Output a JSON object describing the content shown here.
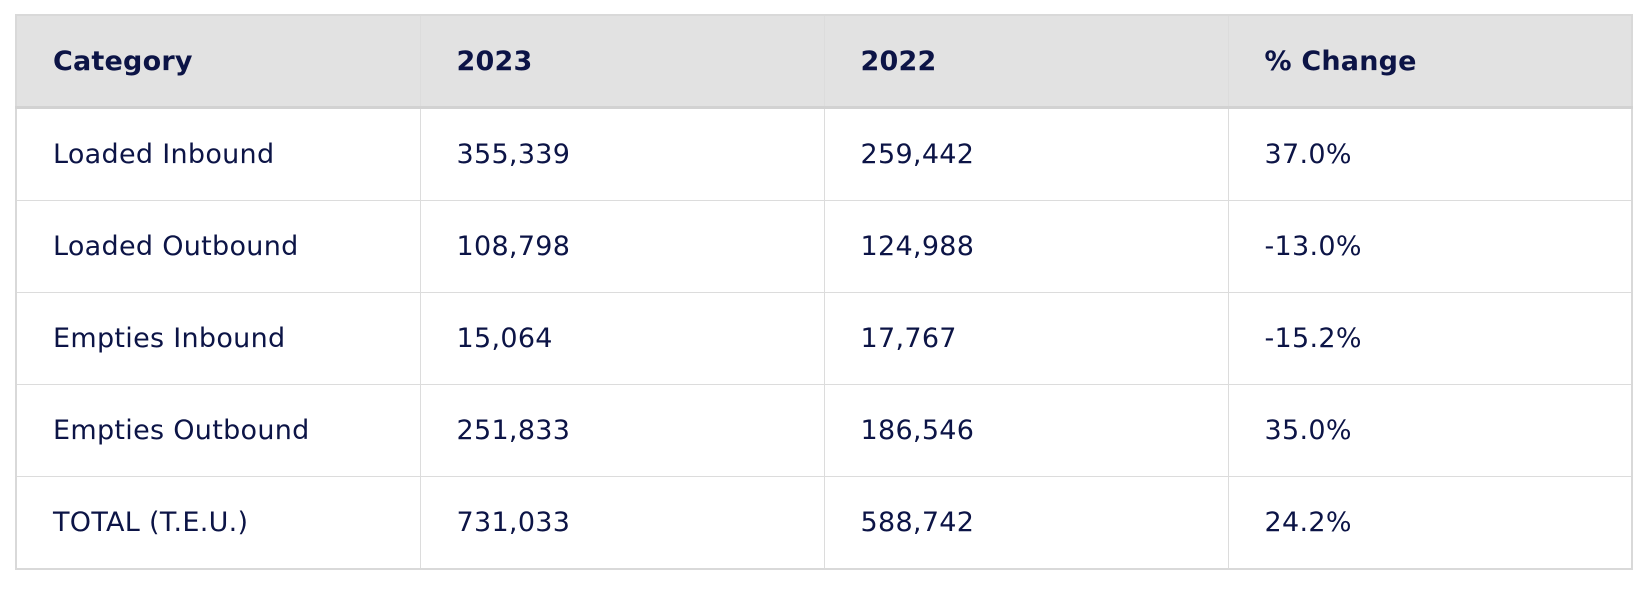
{
  "table": {
    "headers": [
      "Category",
      "2023",
      "2022",
      "% Change"
    ],
    "rows": [
      [
        "Loaded Inbound",
        "355,339",
        "259,442",
        "37.0%"
      ],
      [
        "Loaded Outbound",
        "108,798",
        "124,988",
        "-13.0%"
      ],
      [
        "Empties Inbound",
        "15,064",
        "17,767",
        "-15.2%"
      ],
      [
        "Empties Outbound",
        "251,833",
        "186,546",
        "35.0%"
      ],
      [
        "TOTAL (T.E.U.)",
        "731,033",
        "588,742",
        "24.2%"
      ]
    ]
  },
  "colors": {
    "text": "#0c1446",
    "header_background": "#e2e2e2",
    "border": "#dcdcdc"
  }
}
